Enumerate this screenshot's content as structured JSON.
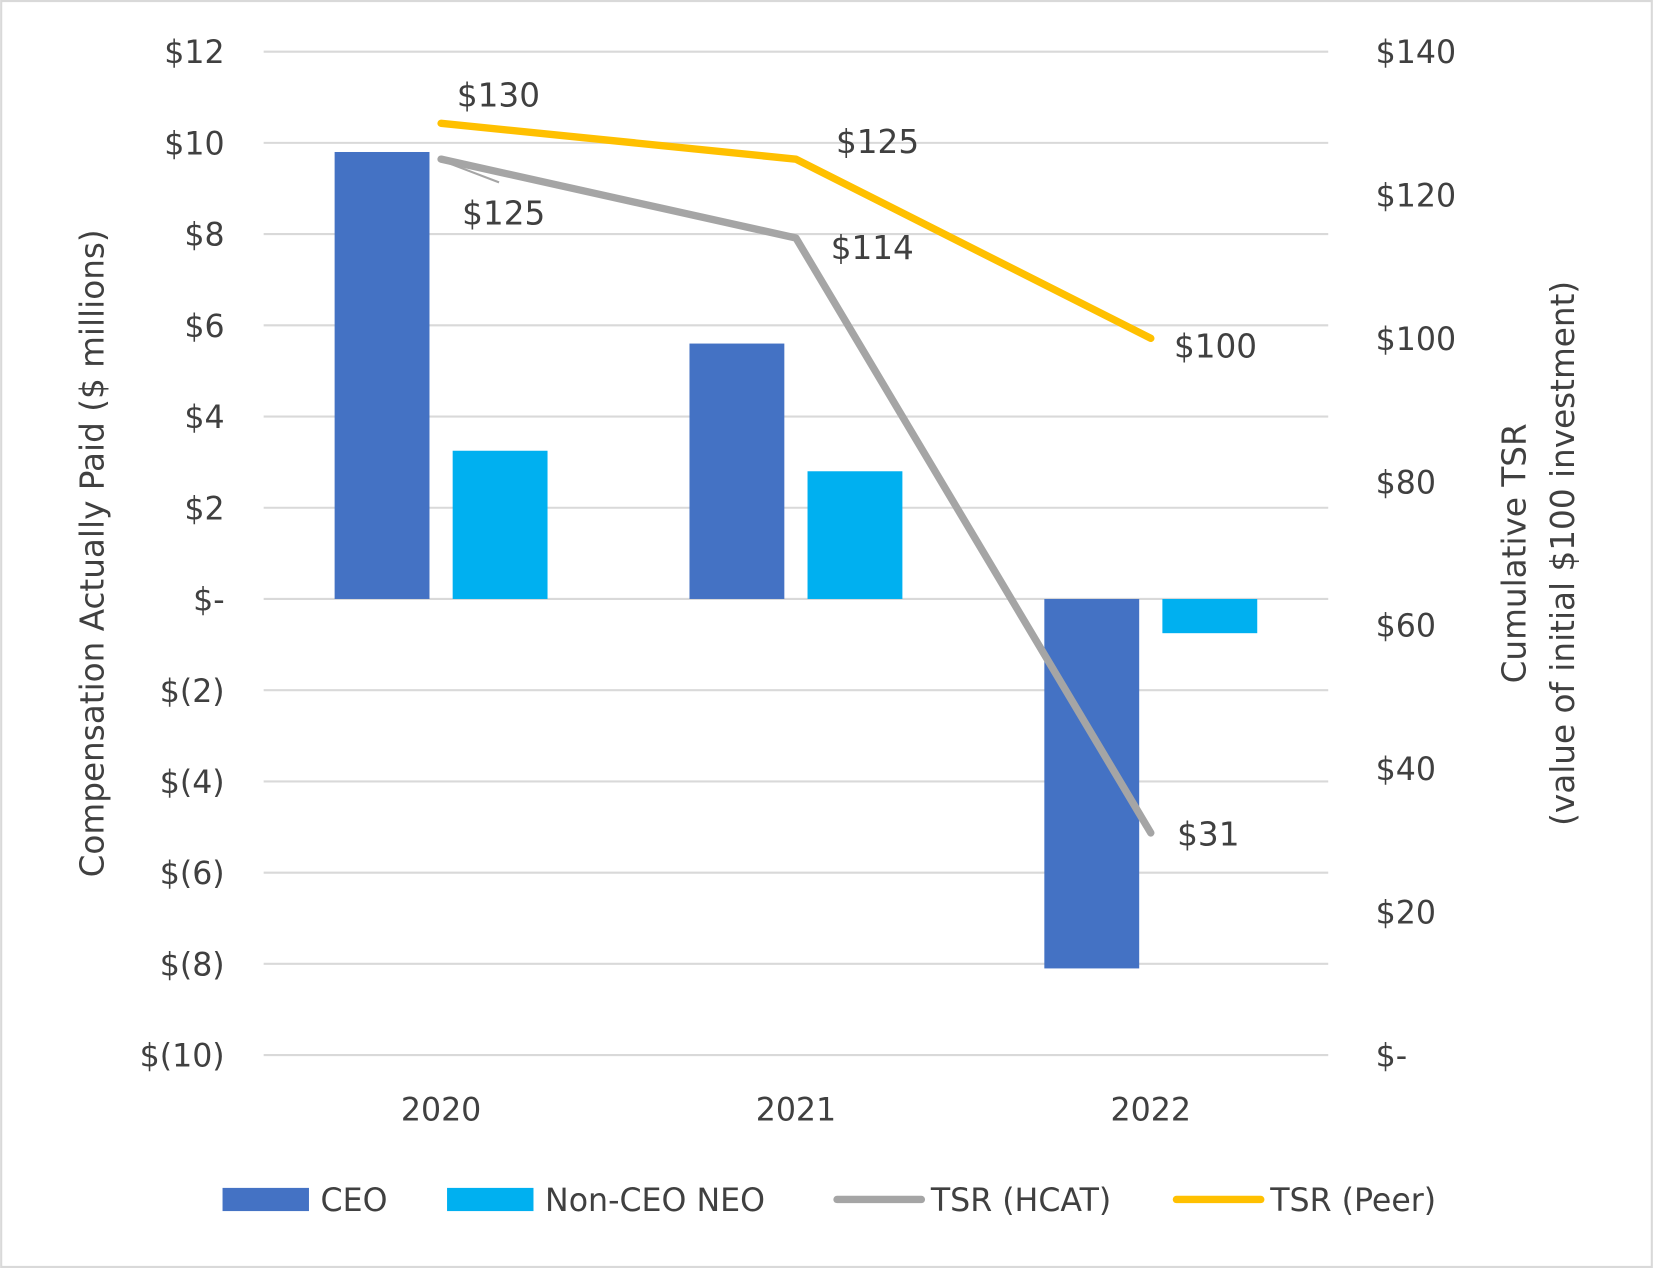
{
  "chart_data": {
    "type": "bar+line",
    "categories": [
      "2020",
      "2021",
      "2022"
    ],
    "ylabel_left": "Compensation Actually Paid ($ millions)",
    "ylabel_right": [
      "Cumulative TSR",
      "(value of initial $100 investment)"
    ],
    "ylim_left": [
      -10,
      12
    ],
    "ylim_right": [
      0,
      140
    ],
    "yticks_left": [
      "$12",
      "$10",
      "$8",
      "$6",
      "$4",
      "$2",
      "$-",
      "$(2)",
      "$(4)",
      "$(6)",
      "$(8)",
      "$(10)"
    ],
    "yticks_right": [
      "$140",
      "$120",
      "$100",
      "$80",
      "$60",
      "$40",
      "$20",
      "$-"
    ],
    "grid": true,
    "legend_position": "bottom",
    "bar_series": [
      {
        "name": "CEO",
        "color": "#4472C4",
        "values": [
          9.8,
          5.6,
          -8.1
        ]
      },
      {
        "name": "Non-CEO NEO",
        "color": "#00B0F0",
        "values": [
          3.25,
          2.8,
          -0.75
        ]
      }
    ],
    "line_series": [
      {
        "name": "TSR (HCAT)",
        "color": "#A5A5A5",
        "values": [
          125,
          114,
          31
        ],
        "labels": [
          "$125",
          "$114",
          "$31"
        ]
      },
      {
        "name": "TSR (Peer)",
        "color": "#FFC000",
        "values": [
          130,
          125,
          100
        ],
        "labels": [
          "$130",
          "$125",
          "$100"
        ]
      }
    ]
  }
}
